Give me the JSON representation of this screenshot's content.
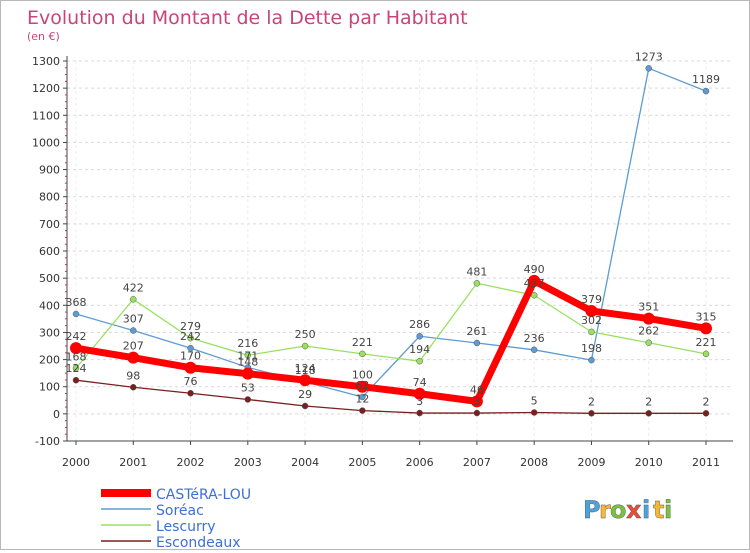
{
  "chart_data": {
    "type": "line",
    "title": "Evolution du Montant de la Dette par Habitant",
    "subtitle": "(en €)",
    "xlabel": "",
    "ylabel": "",
    "x": [
      "2000",
      "2001",
      "2002",
      "2003",
      "2004",
      "2005",
      "2006",
      "2007",
      "2008",
      "2009",
      "2010",
      "2011"
    ],
    "ylim": [
      -100,
      1300
    ],
    "yticks": [
      -100,
      0,
      100,
      200,
      300,
      400,
      500,
      600,
      700,
      800,
      900,
      1000,
      1100,
      1200,
      1300
    ],
    "grid": true,
    "legend_position": "bottom-left",
    "series": [
      {
        "name": "CASTéRA-LOU",
        "color": "#ff0000",
        "values": [
          242,
          207,
          170,
          148,
          124,
          100,
          74,
          46,
          490,
          379,
          351,
          315
        ]
      },
      {
        "name": "Soréac",
        "color": "#5d9bd3",
        "values": [
          368,
          307,
          242,
          171,
          118,
          62,
          286,
          261,
          236,
          198,
          1273,
          1189
        ]
      },
      {
        "name": "Lescurry",
        "color": "#99e060",
        "values": [
          168,
          422,
          279,
          216,
          250,
          221,
          194,
          481,
          437,
          302,
          262,
          221
        ]
      },
      {
        "name": "Escondeaux",
        "color": "#7a1f1f",
        "values": [
          124,
          98,
          76,
          53,
          29,
          12,
          3,
          3,
          5,
          2,
          2,
          2
        ]
      }
    ]
  },
  "branding": {
    "logo_text": "Proxiti",
    "logo_letters": [
      "P",
      "r",
      "o",
      "x",
      "i",
      "t",
      "i"
    ],
    "logo_colors": [
      "#4aa3df",
      "#f7b731",
      "#7ac142",
      "#e74c3c",
      "#4aa3df",
      "#f7b731",
      "#7ac142"
    ]
  }
}
